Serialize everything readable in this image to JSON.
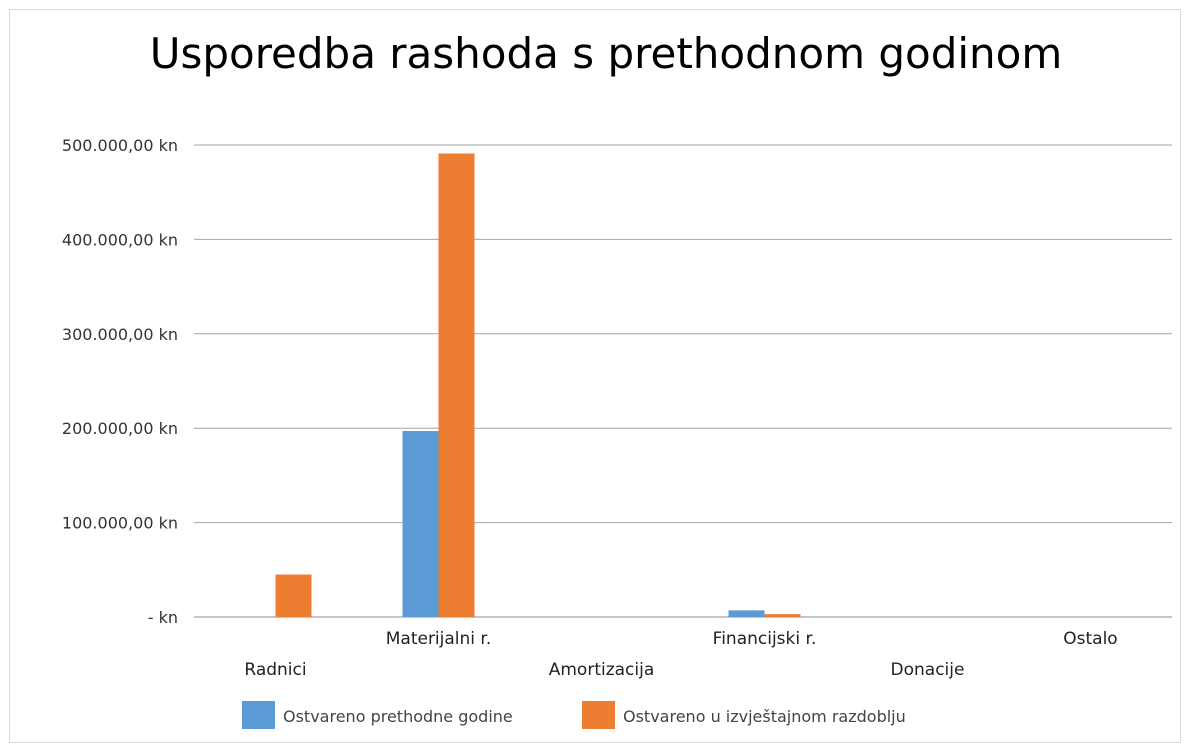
{
  "chart_data": {
    "type": "bar",
    "title": "Usporedba rashoda s prethodnom godinom",
    "categories": [
      "Radnici",
      "Materijalni r.",
      "Amortizacija",
      "Financijski r.",
      "Donacije",
      "Ostalo"
    ],
    "series": [
      {
        "name": "Ostvareno prethodne godine",
        "color": "#5b9bd5",
        "values": [
          0,
          197000,
          0,
          7000,
          0,
          0
        ]
      },
      {
        "name": "Ostvareno u izvještajnom razdoblju",
        "color": "#ed7d31",
        "values": [
          45000,
          491000,
          0,
          3000,
          0,
          0
        ]
      }
    ],
    "ylim": [
      0,
      500000
    ],
    "yticks": [
      {
        "value": 0,
        "label": "-   kn"
      },
      {
        "value": 100000,
        "label": "100.000,00 kn"
      },
      {
        "value": 200000,
        "label": "200.000,00 kn"
      },
      {
        "value": 300000,
        "label": "300.000,00 kn"
      },
      {
        "value": 400000,
        "label": "400.000,00 kn"
      },
      {
        "value": 500000,
        "label": "500.000,00 kn"
      }
    ],
    "grid": true,
    "legend_position": "bottom",
    "xlabel": "",
    "ylabel": ""
  }
}
